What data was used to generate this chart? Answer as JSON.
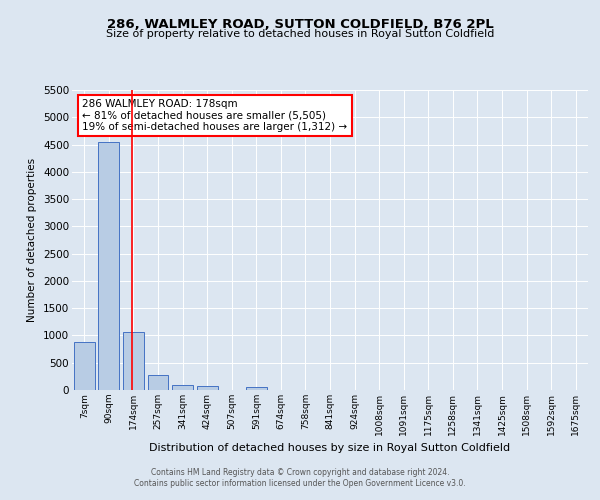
{
  "title_line1": "286, WALMLEY ROAD, SUTTON COLDFIELD, B76 2PL",
  "title_line2": "Size of property relative to detached houses in Royal Sutton Coldfield",
  "xlabel": "Distribution of detached houses by size in Royal Sutton Coldfield",
  "ylabel": "Number of detached properties",
  "footer_line1": "Contains HM Land Registry data © Crown copyright and database right 2024.",
  "footer_line2": "Contains public sector information licensed under the Open Government Licence v3.0.",
  "bar_labels": [
    "7sqm",
    "90sqm",
    "174sqm",
    "257sqm",
    "341sqm",
    "424sqm",
    "507sqm",
    "591sqm",
    "674sqm",
    "758sqm",
    "841sqm",
    "924sqm",
    "1008sqm",
    "1091sqm",
    "1175sqm",
    "1258sqm",
    "1341sqm",
    "1425sqm",
    "1508sqm",
    "1592sqm",
    "1675sqm"
  ],
  "bar_values": [
    880,
    4540,
    1060,
    280,
    90,
    75,
    0,
    50,
    0,
    0,
    0,
    0,
    0,
    0,
    0,
    0,
    0,
    0,
    0,
    0,
    0
  ],
  "bar_color": "#b8cce4",
  "bar_edge_color": "#4472c4",
  "background_color": "#dce6f1",
  "plot_bg_color": "#dce6f1",
  "grid_color": "#ffffff",
  "annotation_text": "286 WALMLEY ROAD: 178sqm\n← 81% of detached houses are smaller (5,505)\n19% of semi-detached houses are larger (1,312) →",
  "annotation_box_color": "#ffffff",
  "annotation_box_edge_color": "#ff0000",
  "property_line_index": 2,
  "property_line_color": "#ff0000",
  "ylim_max": 5500,
  "yticks": [
    0,
    500,
    1000,
    1500,
    2000,
    2500,
    3000,
    3500,
    4000,
    4500,
    5000,
    5500
  ]
}
